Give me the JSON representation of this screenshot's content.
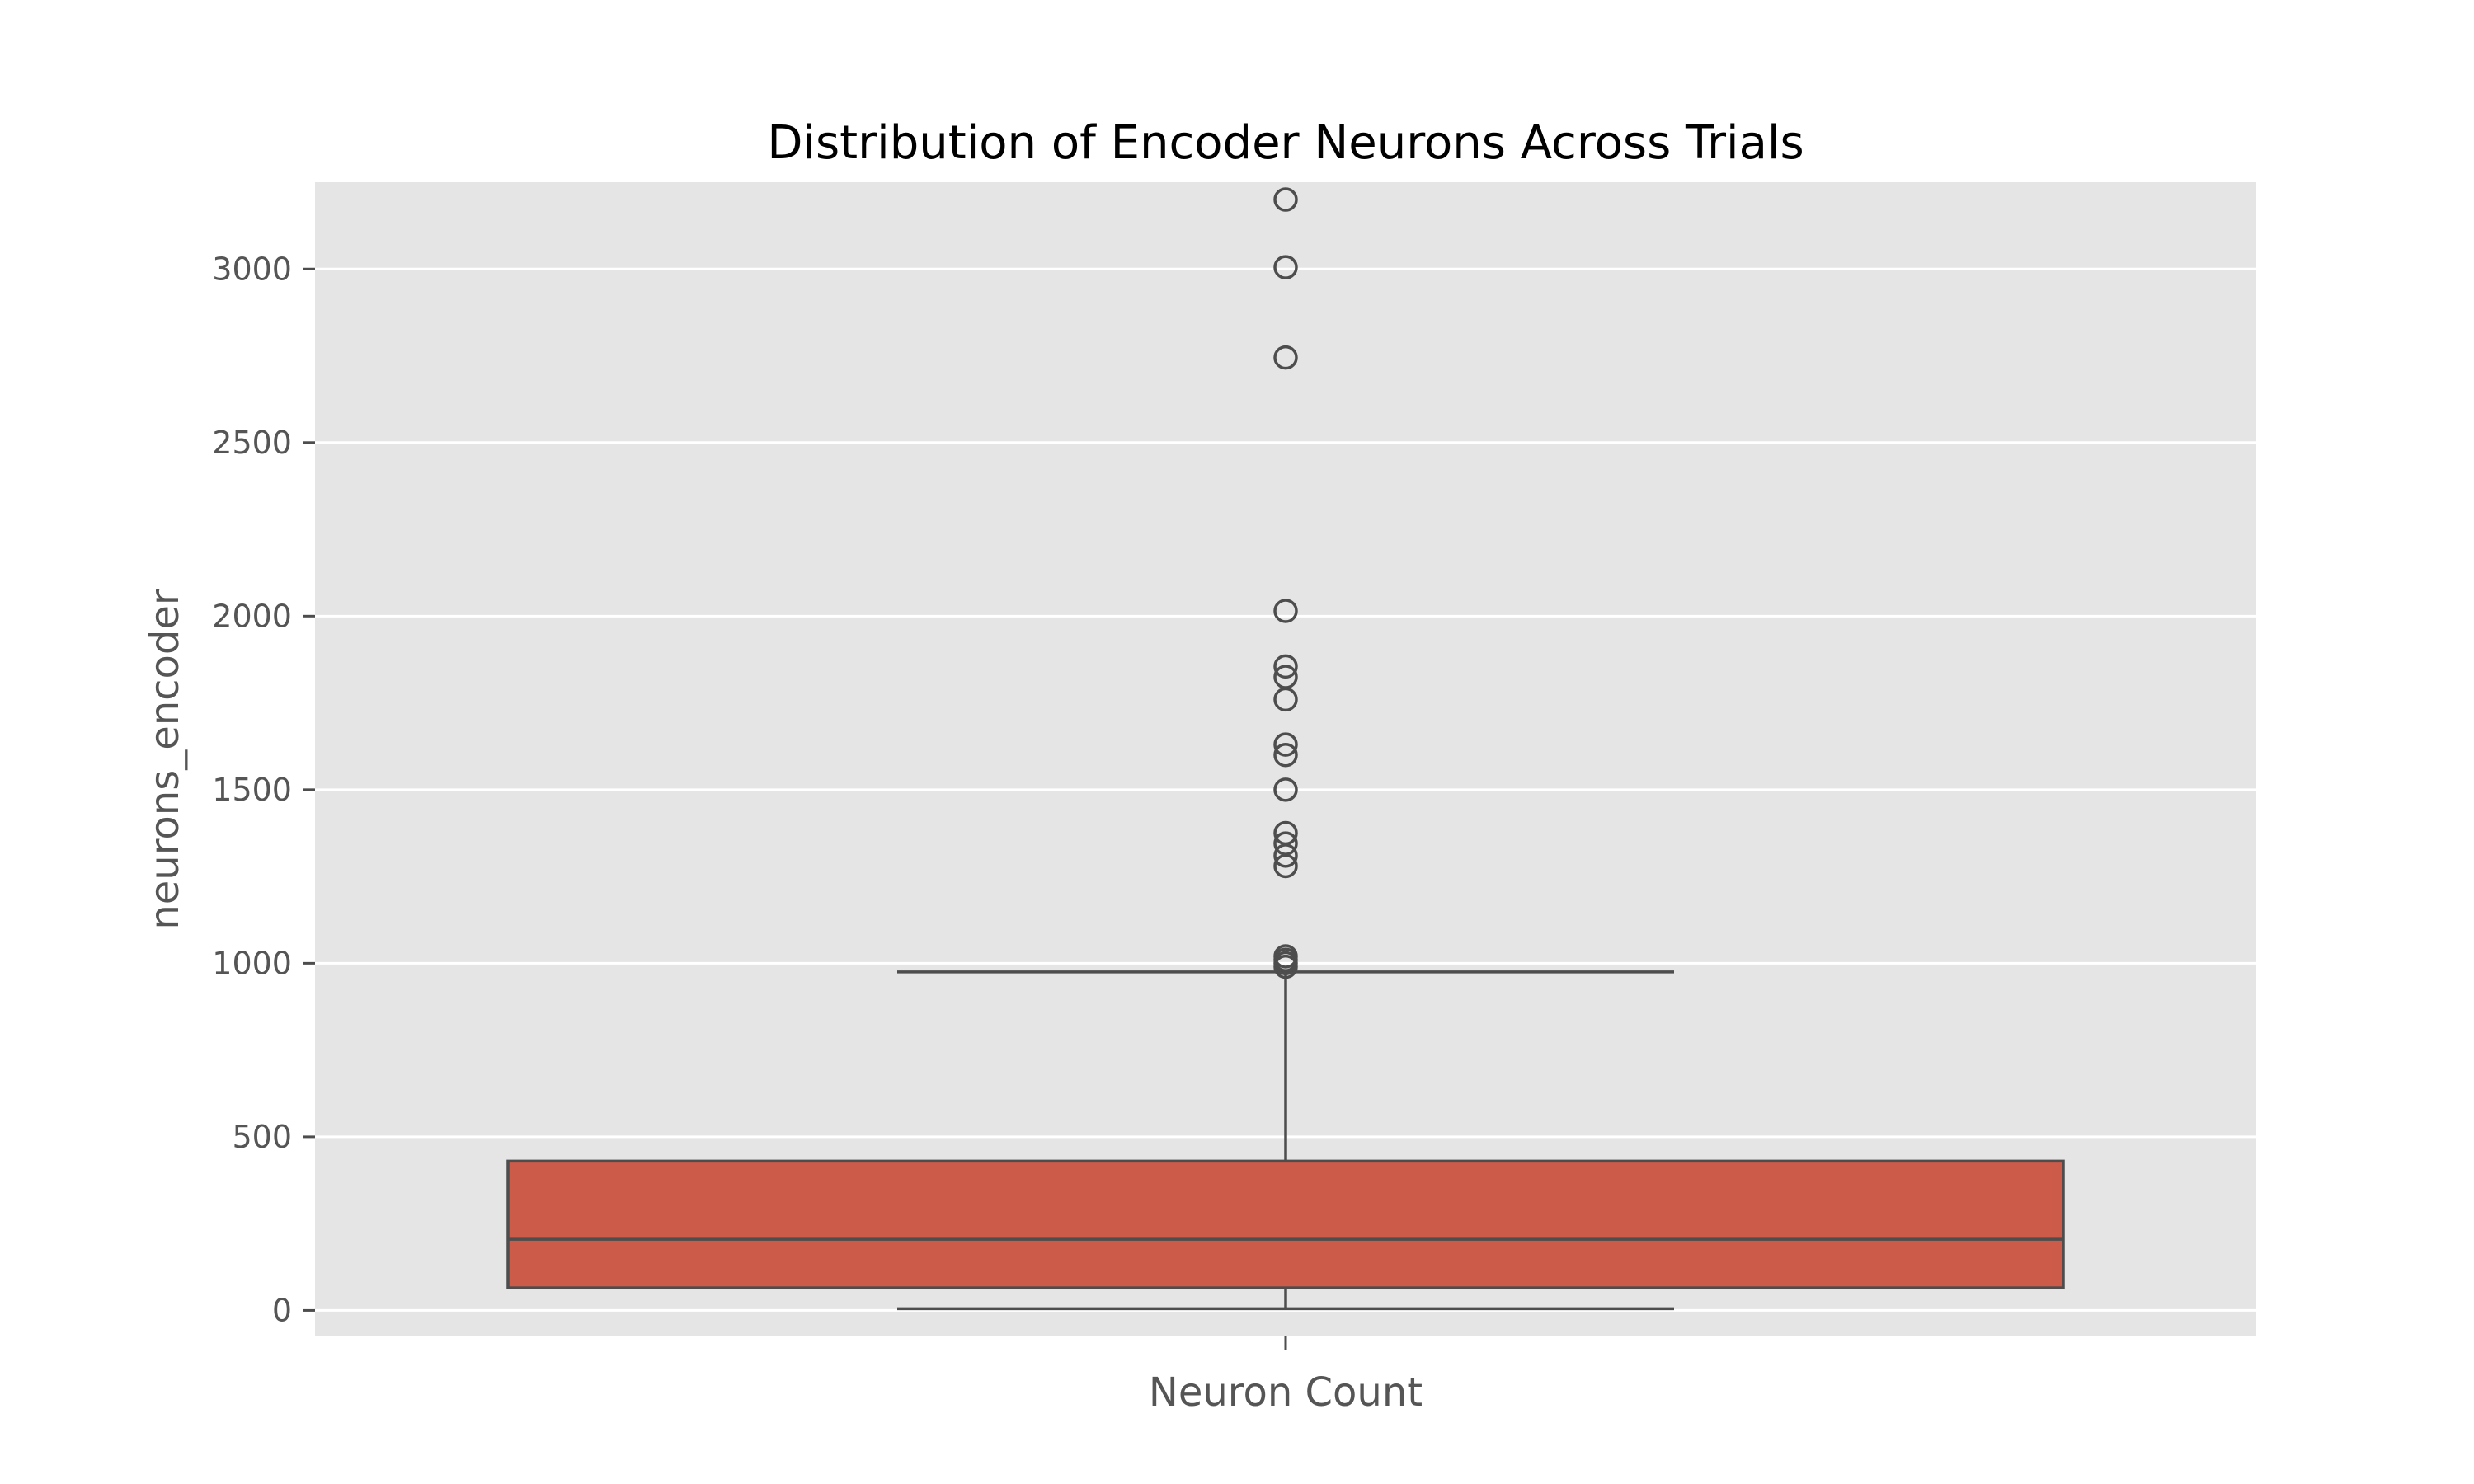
{
  "chart_data": {
    "type": "box",
    "title": "Distribution of Encoder Neurons Across Trials",
    "xlabel": "Neuron Count",
    "ylabel": "neurons_encoder",
    "ylim": [
      -75,
      3250
    ],
    "yticks": [
      0,
      500,
      1000,
      1500,
      2000,
      2500,
      3000
    ],
    "grid": true,
    "colors": {
      "background": "#E5E5E5",
      "box_fill": "#CD5B4A",
      "line": "#4D4D4D",
      "grid": "#FFFFFF"
    },
    "box": {
      "whisker_low": 5,
      "q1": 65,
      "median": 205,
      "q3": 430,
      "whisker_high": 975
    },
    "outliers": [
      990,
      1000,
      1010,
      1020,
      1280,
      1310,
      1345,
      1375,
      1500,
      1600,
      1630,
      1760,
      1825,
      1855,
      2015,
      2745,
      3005,
      3200
    ]
  }
}
